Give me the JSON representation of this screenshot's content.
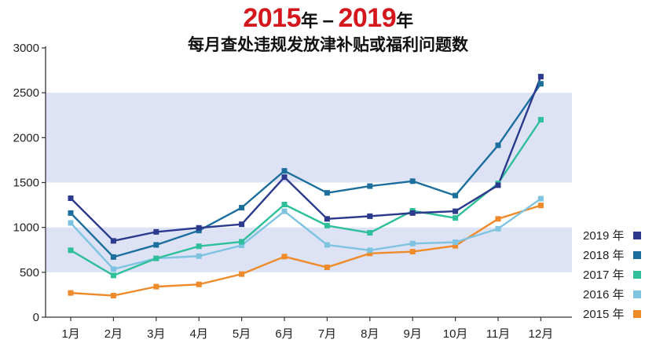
{
  "title": {
    "year_start": "2015",
    "year_end": "2019",
    "nian": "年",
    "dash": "–",
    "subtitle": "每月查处违规发放津补贴或福利问题数"
  },
  "chart_data": {
    "type": "line",
    "title": "2015年–2019年 每月查处违规发放津补贴或福利问题数",
    "categories": [
      "1月",
      "2月",
      "3月",
      "4月",
      "5月",
      "6月",
      "7月",
      "8月",
      "9月",
      "10月",
      "11月",
      "12月"
    ],
    "ylim": [
      0,
      3000
    ],
    "yticks": [
      0,
      500,
      1000,
      1500,
      2000,
      2500,
      3000
    ],
    "grid_bands": [
      [
        500,
        1000
      ],
      [
        1500,
        2000
      ],
      [
        2000,
        2500
      ]
    ],
    "legend_position": "right",
    "series": [
      {
        "name": "2019 年",
        "color": "#2b3a8c",
        "values": [
          1325,
          850,
          950,
          995,
          1035,
          1560,
          1095,
          1125,
          1160,
          1180,
          1470,
          2680
        ]
      },
      {
        "name": "2018 年",
        "color": "#1c6f9c",
        "values": [
          1160,
          670,
          805,
          965,
          1220,
          1630,
          1385,
          1460,
          1515,
          1355,
          1915,
          2600
        ]
      },
      {
        "name": "2017 年",
        "color": "#2fbf9a",
        "values": [
          745,
          465,
          655,
          790,
          840,
          1255,
          1020,
          940,
          1185,
          1105,
          1490,
          2200
        ]
      },
      {
        "name": "2016 年",
        "color": "#7ec3e0",
        "values": [
          1050,
          535,
          655,
          680,
          800,
          1180,
          805,
          745,
          820,
          835,
          985,
          1320
        ]
      },
      {
        "name": "2015 年",
        "color": "#ef8a2a",
        "values": [
          270,
          240,
          340,
          365,
          480,
          675,
          555,
          710,
          730,
          795,
          1095,
          1245
        ]
      }
    ]
  }
}
